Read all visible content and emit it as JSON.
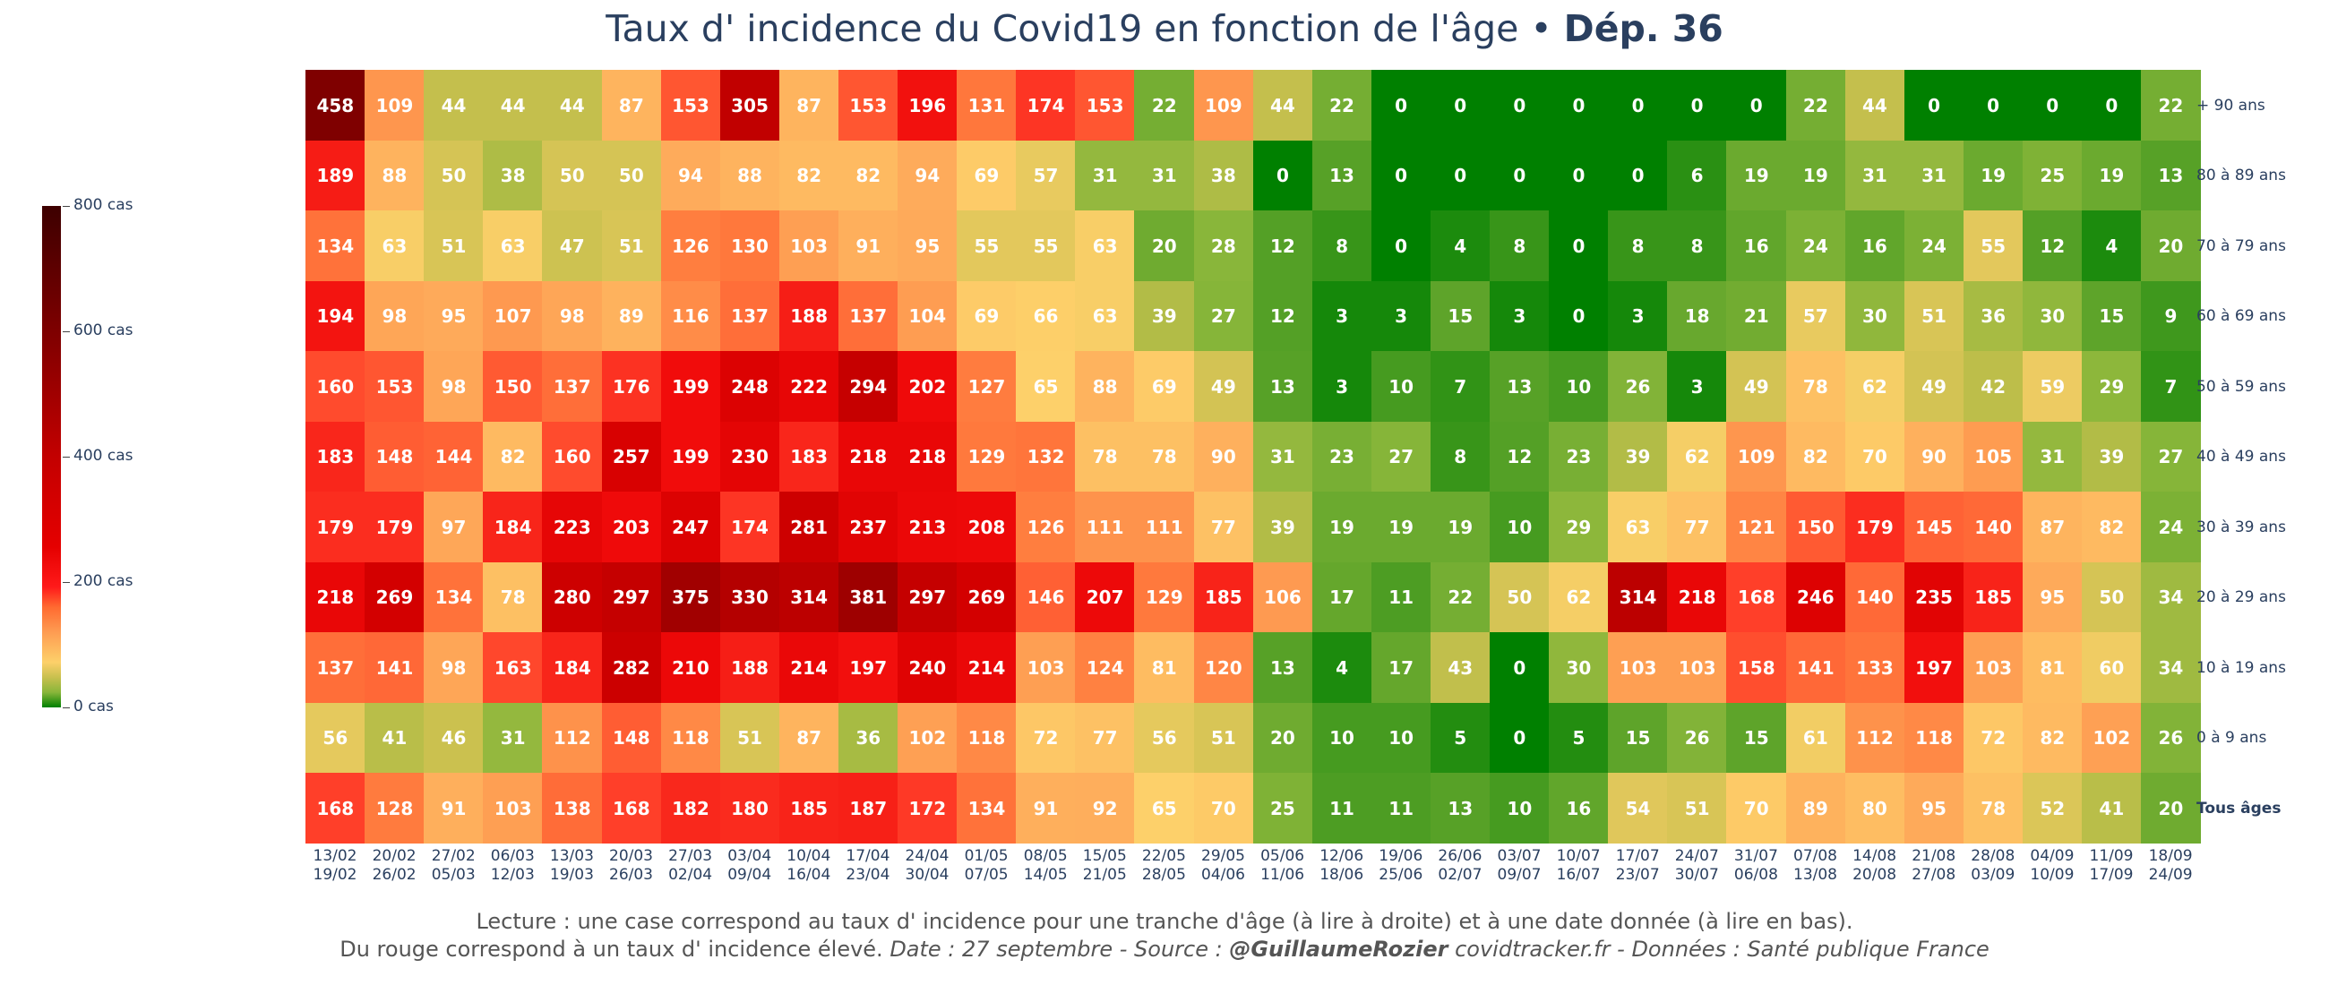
{
  "title": {
    "main": "Taux d' incidence du Covid19 en fonction de l'âge",
    "bullet": " • ",
    "dept": "Dép. 36"
  },
  "footer": {
    "line1": "Lecture : une case correspond au taux d' incidence pour une tranche d'âge (à lire à droite) et à une date donnée (à lire en bas).",
    "line2_a": "Du rouge correspond à un taux d' incidence élevé.  ",
    "line2_b": "Date : 27 septembre - Source : ",
    "line2_c": "@GuillaumeRozier",
    "line2_d": " covidtracker.fr - Données : Santé publique France"
  },
  "colorbar": {
    "ticks": [
      "800 cas",
      "600 cas",
      "400 cas",
      "200 cas",
      "0 cas"
    ],
    "tick_values": [
      800,
      600,
      400,
      200,
      0
    ]
  },
  "chart_data": {
    "type": "heatmap",
    "zmin": 0,
    "zmax": 800,
    "x_top": [
      "13/02",
      "20/02",
      "27/02",
      "06/03",
      "13/03",
      "20/03",
      "27/03",
      "03/04",
      "10/04",
      "17/04",
      "24/04",
      "01/05",
      "08/05",
      "15/05",
      "22/05",
      "29/05",
      "05/06",
      "12/06",
      "19/06",
      "26/06",
      "03/07",
      "10/07",
      "17/07",
      "24/07",
      "31/07",
      "07/08",
      "14/08",
      "21/08",
      "28/08",
      "04/09",
      "11/09",
      "18/09"
    ],
    "x_bottom": [
      "19/02",
      "26/02",
      "05/03",
      "12/03",
      "19/03",
      "26/03",
      "02/04",
      "09/04",
      "16/04",
      "23/04",
      "30/04",
      "07/05",
      "14/05",
      "21/05",
      "28/05",
      "04/06",
      "11/06",
      "18/06",
      "25/06",
      "02/07",
      "09/07",
      "16/07",
      "23/07",
      "30/07",
      "06/08",
      "13/08",
      "20/08",
      "27/08",
      "03/09",
      "10/09",
      "17/09",
      "24/09"
    ],
    "rows": [
      "+ 90 ans",
      "80 à 89 ans",
      "70 à 79 ans",
      "60 à 69 ans",
      "50 à 59 ans",
      "40 à 49 ans",
      "30 à 39 ans",
      "20 à 29 ans",
      "10 à 19 ans",
      "0 à 9 ans",
      "Tous âges"
    ],
    "values": [
      [
        458,
        109,
        44,
        44,
        44,
        87,
        153,
        305,
        87,
        153,
        196,
        131,
        174,
        153,
        22,
        109,
        44,
        22,
        0,
        0,
        0,
        0,
        0,
        0,
        0,
        22,
        44,
        0,
        0,
        0,
        0,
        22
      ],
      [
        189,
        88,
        50,
        38,
        50,
        50,
        94,
        88,
        82,
        82,
        94,
        69,
        57,
        31,
        31,
        38,
        0,
        13,
        0,
        0,
        0,
        0,
        0,
        6,
        19,
        19,
        31,
        31,
        19,
        25,
        19,
        13
      ],
      [
        134,
        63,
        51,
        63,
        47,
        51,
        126,
        130,
        103,
        91,
        95,
        55,
        55,
        63,
        20,
        28,
        12,
        8,
        0,
        4,
        8,
        0,
        8,
        8,
        16,
        24,
        16,
        24,
        55,
        12,
        4,
        20
      ],
      [
        194,
        98,
        95,
        107,
        98,
        89,
        116,
        137,
        188,
        137,
        104,
        69,
        66,
        63,
        39,
        27,
        12,
        3,
        3,
        15,
        3,
        0,
        3,
        18,
        21,
        57,
        30,
        51,
        36,
        30,
        15,
        9
      ],
      [
        160,
        153,
        98,
        150,
        137,
        176,
        199,
        248,
        222,
        294,
        202,
        127,
        65,
        88,
        69,
        49,
        13,
        3,
        10,
        7,
        13,
        10,
        26,
        3,
        49,
        78,
        62,
        49,
        42,
        59,
        29,
        7
      ],
      [
        183,
        148,
        144,
        82,
        160,
        257,
        199,
        230,
        183,
        218,
        218,
        129,
        132,
        78,
        78,
        90,
        31,
        23,
        27,
        8,
        12,
        23,
        39,
        62,
        109,
        82,
        70,
        90,
        105,
        31,
        39,
        27
      ],
      [
        179,
        179,
        97,
        184,
        223,
        203,
        247,
        174,
        281,
        237,
        213,
        208,
        126,
        111,
        111,
        77,
        39,
        19,
        19,
        19,
        10,
        29,
        63,
        77,
        121,
        150,
        179,
        145,
        140,
        87,
        82,
        24
      ],
      [
        218,
        269,
        134,
        78,
        280,
        297,
        375,
        330,
        314,
        381,
        297,
        269,
        146,
        207,
        129,
        185,
        106,
        17,
        11,
        22,
        50,
        62,
        314,
        218,
        168,
        246,
        140,
        235,
        185,
        95,
        50,
        34
      ],
      [
        137,
        141,
        98,
        163,
        184,
        282,
        210,
        188,
        214,
        197,
        240,
        214,
        103,
        124,
        81,
        120,
        13,
        4,
        17,
        43,
        0,
        30,
        103,
        103,
        158,
        141,
        133,
        197,
        103,
        81,
        60,
        34
      ],
      [
        56,
        41,
        46,
        31,
        112,
        148,
        118,
        51,
        87,
        36,
        102,
        118,
        72,
        77,
        56,
        51,
        20,
        10,
        10,
        5,
        0,
        5,
        15,
        26,
        15,
        61,
        112,
        118,
        72,
        82,
        102,
        26
      ],
      [
        168,
        128,
        91,
        103,
        138,
        168,
        182,
        180,
        185,
        187,
        172,
        134,
        91,
        92,
        65,
        70,
        25,
        11,
        11,
        13,
        10,
        16,
        54,
        51,
        70,
        89,
        80,
        95,
        78,
        52,
        41,
        20
      ]
    ]
  }
}
